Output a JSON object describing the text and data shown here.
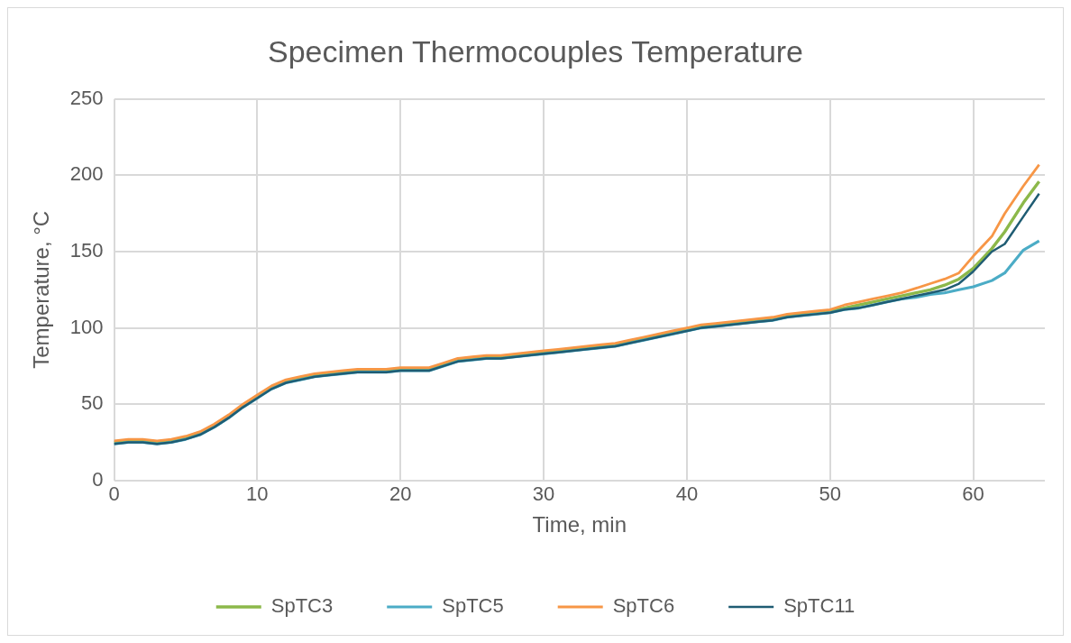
{
  "chart_data": {
    "type": "line",
    "title": "Specimen Thermocouples Temperature",
    "xlabel": "Time, min",
    "ylabel": "Temperature, °C",
    "x": [
      0,
      1,
      2,
      3,
      4,
      5,
      6,
      7,
      8,
      9,
      10,
      11,
      12,
      13,
      14,
      15,
      16,
      17,
      18,
      19,
      20,
      21,
      22,
      23,
      24,
      25,
      26,
      27,
      28,
      29,
      30,
      31,
      32,
      33,
      34,
      35,
      36,
      37,
      38,
      39,
      40,
      41,
      42,
      43,
      44,
      45,
      46,
      47,
      48,
      49,
      50,
      51,
      52,
      53,
      54,
      55,
      56,
      57,
      58,
      59,
      60,
      61.3,
      62.2,
      63.5,
      64.6
    ],
    "series": [
      {
        "name": "SpTC3",
        "color": "#8cb84a",
        "values": [
          25,
          26,
          26,
          25,
          26,
          28,
          31,
          36,
          42,
          49,
          55,
          61,
          65,
          67,
          69,
          70,
          71,
          72,
          72,
          72,
          73,
          73,
          73,
          76,
          79,
          80,
          81,
          81,
          82,
          83,
          84,
          85,
          86,
          87,
          88,
          89,
          91,
          93,
          95,
          97,
          99,
          101,
          102,
          103,
          104,
          105,
          106,
          108,
          109,
          110,
          111,
          113,
          115,
          117,
          119,
          121,
          123,
          125,
          128,
          132,
          139,
          152,
          163,
          182,
          196
        ]
      },
      {
        "name": "SpTC5",
        "color": "#4bacc6",
        "values": [
          24,
          25,
          25,
          24,
          25,
          27,
          30,
          35,
          41,
          48,
          54,
          60,
          64,
          66,
          68,
          69,
          70,
          71,
          71,
          71,
          72,
          72,
          72,
          75,
          78,
          79,
          80,
          80,
          81,
          82,
          83,
          84,
          85,
          86,
          87,
          88,
          90,
          92,
          94,
          96,
          98,
          100,
          101,
          102,
          103,
          104,
          105,
          107,
          108,
          109,
          110,
          112,
          113,
          115,
          117,
          119,
          120,
          122,
          123,
          125,
          127,
          131,
          136,
          151,
          157
        ]
      },
      {
        "name": "SpTC6",
        "color": "#f79646",
        "values": [
          26,
          27,
          27,
          26,
          27,
          29,
          32,
          37,
          43,
          50,
          56,
          62,
          66,
          68,
          70,
          71,
          72,
          73,
          73,
          73,
          74,
          74,
          74,
          77,
          80,
          81,
          82,
          82,
          83,
          84,
          85,
          86,
          87,
          88,
          89,
          90,
          92,
          94,
          96,
          98,
          100,
          102,
          103,
          104,
          105,
          106,
          107,
          109,
          110,
          111,
          112,
          115,
          117,
          119,
          121,
          123,
          126,
          129,
          132,
          136,
          147,
          160,
          175,
          193,
          207
        ]
      },
      {
        "name": "SpTC11",
        "color": "#1f5c73",
        "values": [
          24,
          25,
          25,
          24,
          25,
          27,
          30,
          35,
          41,
          48,
          54,
          60,
          64,
          66,
          68,
          69,
          70,
          71,
          71,
          71,
          72,
          72,
          72,
          75,
          78,
          79,
          80,
          80,
          81,
          82,
          83,
          84,
          85,
          86,
          87,
          88,
          90,
          92,
          94,
          96,
          98,
          100,
          101,
          102,
          103,
          104,
          105,
          107,
          108,
          109,
          110,
          112,
          113,
          115,
          117,
          119,
          121,
          123,
          125,
          129,
          137,
          150,
          155,
          173,
          188
        ]
      }
    ],
    "xlim": [
      0,
      65
    ],
    "xticks": [
      0,
      10,
      20,
      30,
      40,
      50,
      60
    ],
    "ylim": [
      0,
      250
    ],
    "yticks": [
      0,
      50,
      100,
      150,
      200,
      250
    ],
    "grid": true,
    "legend": "bottom",
    "marker": "none",
    "line_style": "solid"
  }
}
